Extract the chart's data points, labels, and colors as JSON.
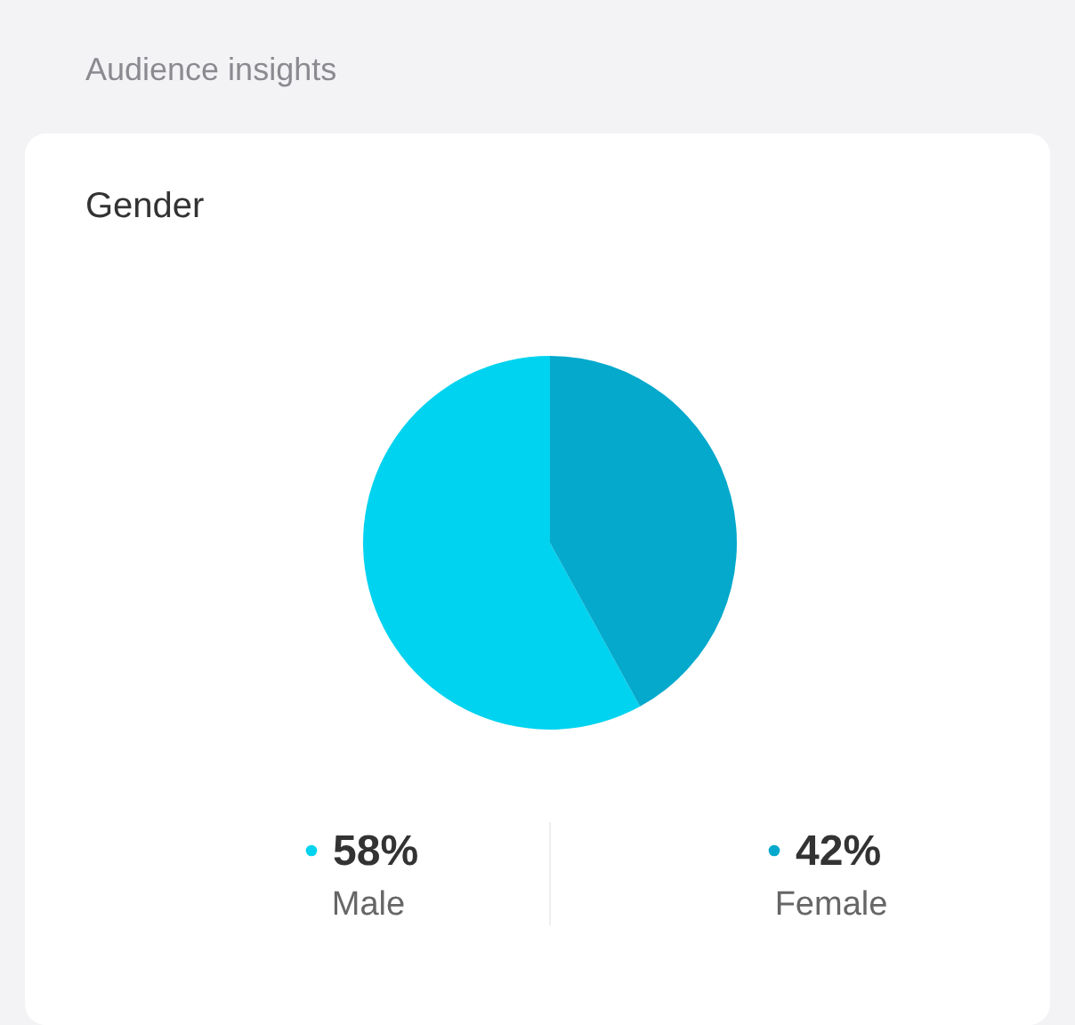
{
  "chart_data": {
    "type": "pie",
    "title": "Audience insights",
    "subtitle": "Gender",
    "categories": [
      "Male",
      "Female"
    ],
    "values": [
      58,
      42
    ],
    "colors": [
      "#00d3ef",
      "#04a9cc"
    ],
    "value_labels": [
      "58%",
      "42%"
    ],
    "legend": "bottom"
  }
}
